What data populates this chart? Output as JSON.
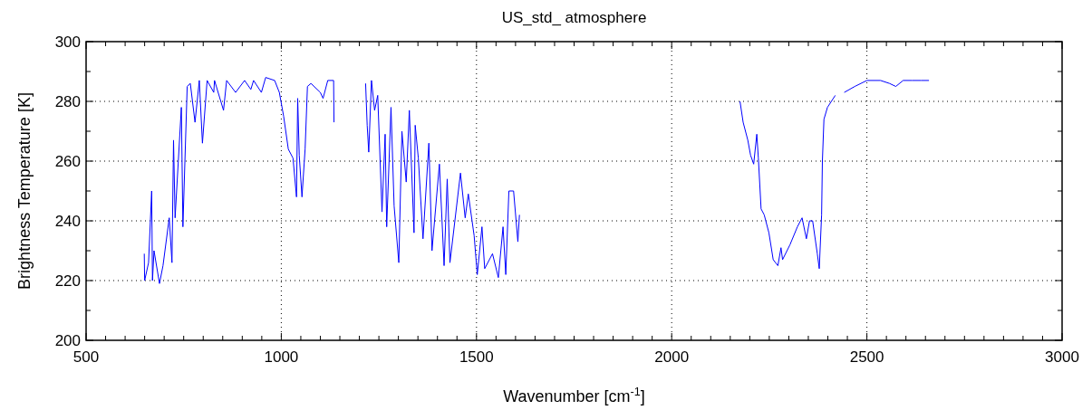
{
  "chart_data": {
    "type": "line",
    "title": "US_std_ atmosphere",
    "xlabel": "Wavenumber [cm$^{-1}$]",
    "ylabel": "Brightness Temperature [K]",
    "xlim": [
      500,
      3000
    ],
    "ylim": [
      200,
      300
    ],
    "xticks": [
      500,
      {
        "value": 550,
        "label": null
      },
      {
        "value": 600,
        "label": null
      },
      {
        "value": 650,
        "label": null
      },
      {
        "value": 700,
        "label": null
      },
      {
        "value": 750,
        "label": null
      },
      {
        "value": 800,
        "label": null
      },
      {
        "value": 850,
        "label": null
      },
      {
        "value": 900,
        "label": null
      },
      {
        "value": 950,
        "label": null
      },
      1000,
      {
        "value": 1050,
        "label": null
      },
      {
        "value": 1100,
        "label": null
      },
      {
        "value": 1150,
        "label": null
      },
      {
        "value": 1200,
        "label": null
      },
      {
        "value": 1250,
        "label": null
      },
      {
        "value": 1300,
        "label": null
      },
      {
        "value": 1350,
        "label": null
      },
      {
        "value": 1400,
        "label": null
      },
      {
        "value": 1450,
        "label": null
      },
      1500,
      {
        "value": 1550,
        "label": null
      },
      {
        "value": 1600,
        "label": null
      },
      {
        "value": 1650,
        "label": null
      },
      {
        "value": 1700,
        "label": null
      },
      {
        "value": 1750,
        "label": null
      },
      {
        "value": 1800,
        "label": null
      },
      {
        "value": 1850,
        "label": null
      },
      {
        "value": 1900,
        "label": null
      },
      {
        "value": 1950,
        "label": null
      },
      2000,
      {
        "value": 2050,
        "label": null
      },
      {
        "value": 2100,
        "label": null
      },
      {
        "value": 2150,
        "label": null
      },
      {
        "value": 2200,
        "label": null
      },
      {
        "value": 2250,
        "label": null
      },
      {
        "value": 2300,
        "label": null
      },
      {
        "value": 2350,
        "label": null
      },
      {
        "value": 2400,
        "label": null
      },
      {
        "value": 2450,
        "label": null
      },
      2500,
      {
        "value": 2550,
        "label": null
      },
      {
        "value": 2600,
        "label": null
      },
      {
        "value": 2650,
        "label": null
      },
      {
        "value": 2700,
        "label": null
      },
      {
        "value": 2750,
        "label": null
      },
      {
        "value": 2800,
        "label": null
      },
      {
        "value": 2850,
        "label": null
      },
      {
        "value": 2900,
        "label": null
      },
      {
        "value": 2950,
        "label": null
      },
      3000
    ],
    "yticks": [
      200,
      {
        "value": 210,
        "label": null
      },
      220,
      {
        "value": 230,
        "label": null
      },
      240,
      {
        "value": 250,
        "label": null
      },
      260,
      {
        "value": 270,
        "label": null
      },
      280,
      {
        "value": 290,
        "label": null
      },
      300
    ],
    "grid": true,
    "marker": "none",
    "line_style": "solid",
    "series": [
      {
        "color": "#0000ff",
        "x": [
          649,
          650,
          660,
          668,
          670,
          674,
          688,
          697,
          713,
          720,
          724,
          728,
          744,
          748,
          759,
          767,
          779,
          790,
          798,
          810,
          827,
          829,
          852,
          860,
          883,
          906,
          922,
          929,
          949,
          960,
          983,
          995,
          1006,
          1018,
          1030,
          1039,
          1042,
          1046,
          1053,
          1061,
          1067,
          1076,
          1100,
          1107,
          1119,
          1134,
          1135,
          1180,
          1216,
          1220,
          1224,
          1231,
          1239,
          1247,
          1258,
          1266,
          1270,
          1281,
          1289,
          1301,
          1309,
          1320,
          1328,
          1340,
          1343,
          1351,
          1363,
          1378,
          1386,
          1405,
          1417,
          1425,
          1432,
          1459,
          1471,
          1479,
          1494,
          1502,
          1514,
          1521,
          1541,
          1556,
          1568,
          1575,
          1583,
          1595,
          1606,
          1610,
          1900,
          2175,
          2183,
          2195,
          2202,
          2210,
          2218,
          2222,
          2229,
          2237,
          2249,
          2260,
          2272,
          2280,
          2284,
          2303,
          2322,
          2334,
          2345,
          2353,
          2361,
          2373,
          2378,
          2384,
          2386,
          2390,
          2399,
          2419,
          2430,
          2442,
          2469,
          2500,
          2535,
          2558,
          2574,
          2593,
          2616,
          2639,
          2659
        ],
        "values": [
          229,
          220,
          226,
          250,
          220,
          230,
          219,
          225,
          241,
          226,
          267,
          241,
          278,
          238,
          285,
          286,
          273,
          287,
          266,
          287,
          283,
          287,
          277,
          287,
          283,
          287,
          284,
          287,
          283,
          288,
          287,
          283,
          275,
          264,
          261,
          248,
          281,
          262,
          248,
          264,
          285,
          286,
          283,
          281,
          287,
          287,
          273,
          null,
          286,
          272,
          263,
          287,
          277,
          282,
          243,
          269,
          238,
          278,
          245,
          226,
          270,
          253,
          277,
          236,
          272,
          261,
          234,
          266,
          230,
          259,
          225,
          254,
          226,
          256,
          241,
          249,
          235,
          222,
          238,
          224,
          229,
          221,
          238,
          222,
          250,
          250,
          233,
          242,
          null,
          280,
          273,
          267,
          262,
          259,
          269,
          261,
          244,
          242,
          236,
          227,
          225,
          231,
          227,
          232,
          238,
          241,
          234,
          240,
          240,
          229,
          224,
          242,
          260,
          274,
          278,
          282,
          null,
          283,
          285,
          287,
          287,
          286,
          285,
          287,
          287,
          287,
          287
        ]
      }
    ]
  }
}
